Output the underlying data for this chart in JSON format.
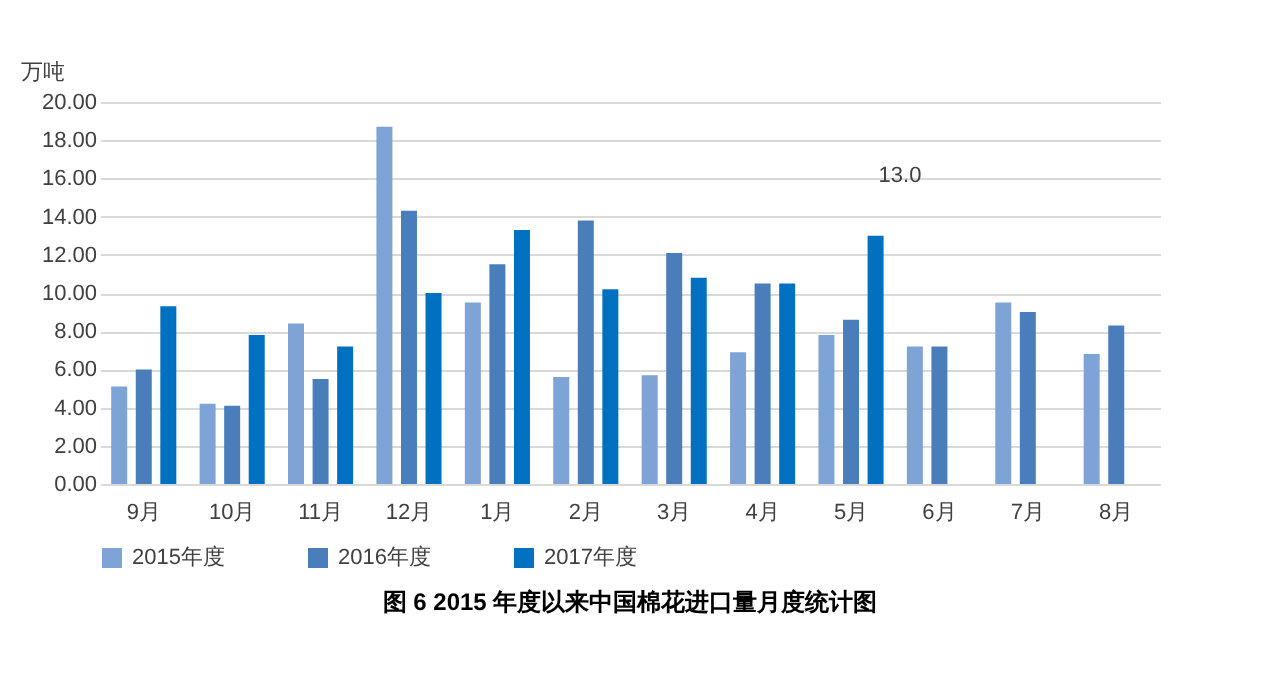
{
  "chart_data": {
    "type": "bar",
    "title": "图 6   2015 年度以来中国棉花进口量月度统计图",
    "ylabel": "万吨",
    "categories": [
      "9月",
      "10月",
      "11月",
      "12月",
      "1月",
      "2月",
      "3月",
      "4月",
      "5月",
      "6月",
      "7月",
      "8月"
    ],
    "series": [
      {
        "name": "2015年度",
        "color": "#7ea3d6",
        "values": [
          5.1,
          4.2,
          8.4,
          18.7,
          9.5,
          5.6,
          5.7,
          6.9,
          7.8,
          7.2,
          9.5,
          6.8
        ]
      },
      {
        "name": "2016年度",
        "color": "#4a7ebb",
        "values": [
          6.0,
          4.1,
          5.5,
          14.3,
          11.5,
          13.8,
          12.1,
          10.5,
          8.6,
          7.2,
          9.0,
          8.3
        ]
      },
      {
        "name": "2017年度",
        "color": "#0070c0",
        "values": [
          9.3,
          7.8,
          7.2,
          10.0,
          13.3,
          10.2,
          10.8,
          10.5,
          13.0,
          null,
          null,
          null
        ]
      }
    ],
    "annotations": [
      "13.0"
    ],
    "ylim": [
      0,
      20
    ],
    "yticks": [
      {
        "value": 0,
        "label": "0.00"
      },
      {
        "value": 2,
        "label": "2.00"
      },
      {
        "value": 4,
        "label": "4.00"
      },
      {
        "value": 6,
        "label": "6.00"
      },
      {
        "value": 8,
        "label": "8.00"
      },
      {
        "value": 10,
        "label": "10.00"
      },
      {
        "value": 12,
        "label": "12.00"
      },
      {
        "value": 14,
        "label": "14.00"
      },
      {
        "value": 16,
        "label": "16.00"
      },
      {
        "value": 18,
        "label": "18.00"
      },
      {
        "value": 20,
        "label": "20.00"
      }
    ],
    "grid": "y",
    "legend": "bottom"
  }
}
